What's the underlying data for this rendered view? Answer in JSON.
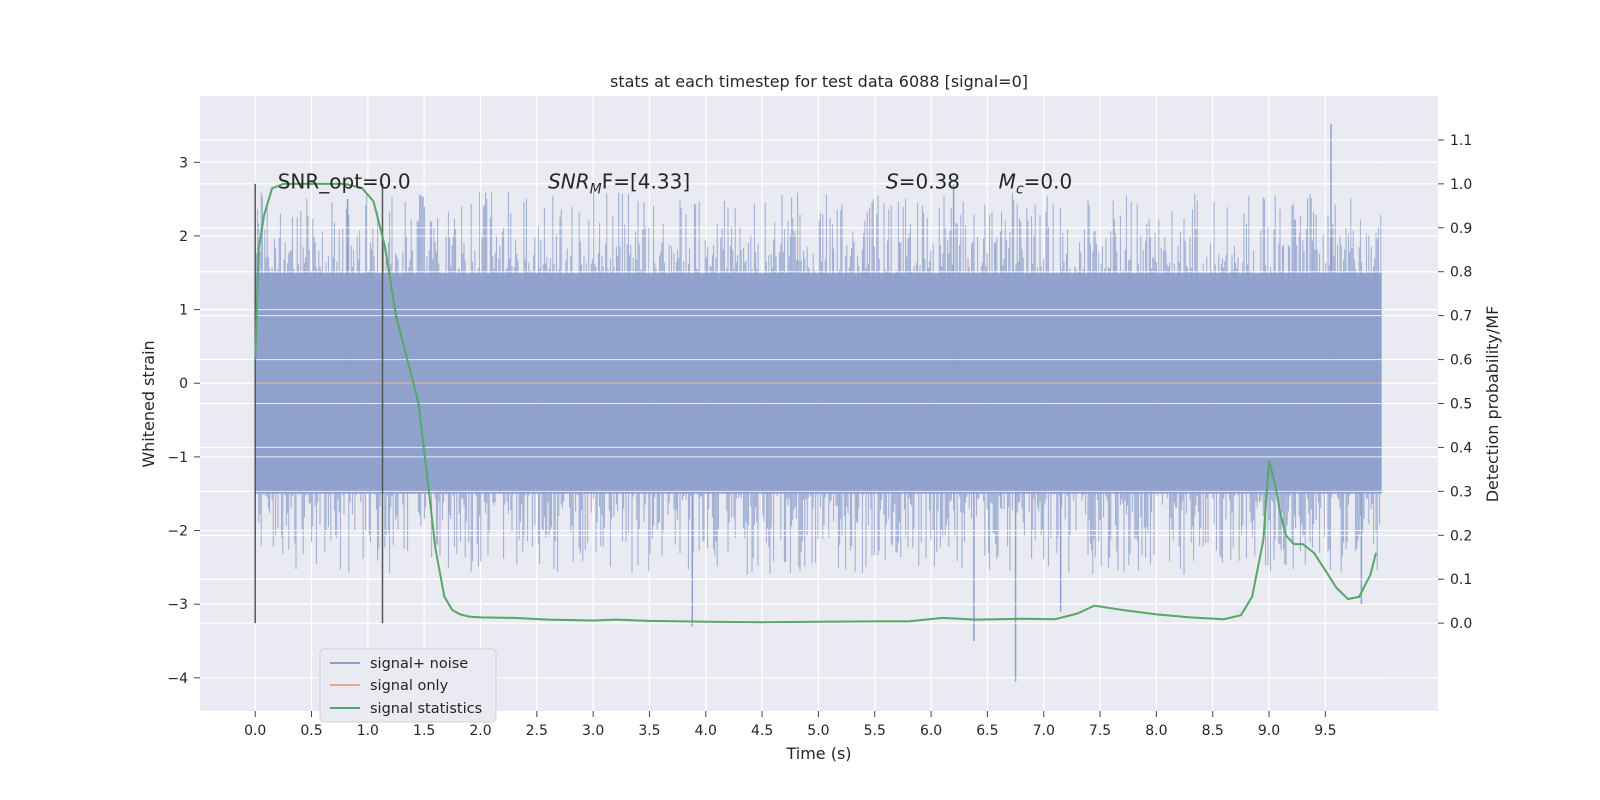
{
  "chart_data": {
    "type": "line",
    "title": "stats at each timestep for test data 6088 [signal=0]",
    "xlabel": "Time (s)",
    "ylabel": "Whitened strain",
    "ylabel_right": "Detection probability/MF",
    "xlim": [
      -0.49,
      10.5
    ],
    "ylim": [
      -4.45,
      3.9
    ],
    "ylim_right": [
      -0.2,
      1.2
    ],
    "x_ticks": [
      0.0,
      0.5,
      1.0,
      1.5,
      2.0,
      2.5,
      3.0,
      3.5,
      4.0,
      4.5,
      5.0,
      5.5,
      6.0,
      6.5,
      7.0,
      7.5,
      8.0,
      8.5,
      9.0,
      9.5
    ],
    "x_tick_labels": [
      "0.0",
      "0.5",
      "1.0",
      "1.5",
      "2.0",
      "2.5",
      "3.0",
      "3.5",
      "4.0",
      "4.5",
      "5.0",
      "5.5",
      "6.0",
      "6.5",
      "7.0",
      "7.5",
      "8.0",
      "8.5",
      "9.0",
      "9.5"
    ],
    "y_ticks": [
      -4,
      -3,
      -2,
      -1,
      0,
      1,
      2,
      3
    ],
    "y_tick_labels": [
      "−4",
      "−3",
      "−2",
      "−1",
      "0",
      "1",
      "2",
      "3"
    ],
    "y_right_ticks": [
      0.0,
      0.1,
      0.2,
      0.3,
      0.4,
      0.5,
      0.6,
      0.7,
      0.8,
      0.9,
      1.0,
      1.1
    ],
    "y_right_tick_labels": [
      "0.0",
      "0.1",
      "0.2",
      "0.3",
      "0.4",
      "0.5",
      "0.6",
      "0.7",
      "0.8",
      "0.9",
      "1.0",
      "1.1"
    ],
    "grid": true,
    "legend_position": "lower-left",
    "series": [
      {
        "name": "signal+ noise",
        "color": "#8da0cb",
        "kind": "noise-band",
        "x_range": [
          0.0,
          10.0
        ],
        "typical_range": [
          -1.5,
          1.5
        ],
        "peak_range": [
          -4.05,
          3.52
        ]
      },
      {
        "name": "signal only",
        "color": "#e8a886",
        "x": [
          0.0,
          10.0
        ],
        "y": [
          0.0,
          0.0
        ]
      },
      {
        "name": "signal statistics",
        "color": "#55a868",
        "axis": "right",
        "x": [
          0.0,
          0.03,
          0.08,
          0.15,
          0.25,
          0.4,
          0.6,
          0.8,
          0.95,
          1.05,
          1.15,
          1.25,
          1.35,
          1.45,
          1.52,
          1.6,
          1.68,
          1.75,
          1.82,
          1.9,
          2.0,
          2.3,
          2.6,
          3.0,
          3.2,
          3.5,
          4.0,
          4.5,
          5.0,
          5.5,
          5.8,
          6.1,
          6.4,
          6.8,
          7.1,
          7.3,
          7.45,
          7.7,
          8.0,
          8.3,
          8.6,
          8.75,
          8.85,
          8.95,
          9.0,
          9.05,
          9.1,
          9.15,
          9.22,
          9.3,
          9.4,
          9.5,
          9.6,
          9.7,
          9.8,
          9.9,
          9.95
        ],
        "y": [
          0.6,
          0.85,
          0.93,
          0.99,
          1.0,
          1.0,
          1.0,
          1.0,
          0.99,
          0.96,
          0.86,
          0.7,
          0.6,
          0.5,
          0.35,
          0.17,
          0.06,
          0.03,
          0.02,
          0.015,
          0.013,
          0.012,
          0.008,
          0.006,
          0.008,
          0.005,
          0.003,
          0.002,
          0.003,
          0.004,
          0.004,
          0.012,
          0.008,
          0.01,
          0.009,
          0.022,
          0.04,
          0.03,
          0.02,
          0.013,
          0.009,
          0.018,
          0.06,
          0.19,
          0.37,
          0.32,
          0.25,
          0.2,
          0.18,
          0.18,
          0.16,
          0.12,
          0.08,
          0.055,
          0.06,
          0.11,
          0.16
        ]
      }
    ],
    "vertical_lines": [
      0.0,
      1.13
    ],
    "annotations": [
      {
        "text": "SNR_opt=0.0",
        "x": 0.2
      },
      {
        "text_main": "SNR",
        "text_sub": "M",
        "text_rest": "F=[4.33]",
        "x": 2.6
      },
      {
        "text_main": "S",
        "text_rest": "=0.38",
        "x": 5.6
      },
      {
        "text_main": "M",
        "text_sub": "c",
        "text_rest": "=0.0",
        "x": 6.6
      }
    ]
  },
  "legend": {
    "items": [
      {
        "label": "signal+ noise",
        "color": "#8da0cb"
      },
      {
        "label": "signal only",
        "color": "#e8a886"
      },
      {
        "label": "signal statistics",
        "color": "#55a868"
      }
    ]
  }
}
